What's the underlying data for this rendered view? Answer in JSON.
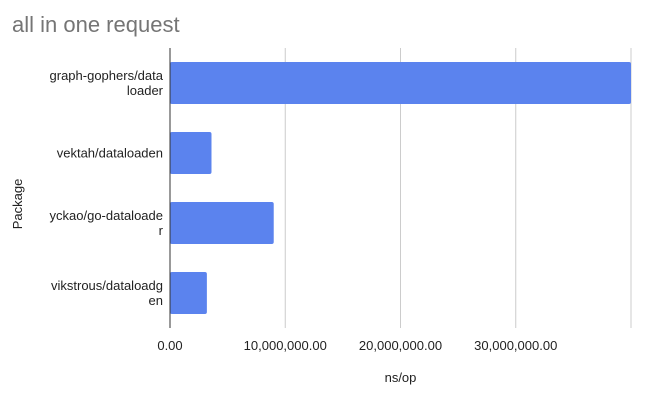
{
  "chart_data": {
    "type": "bar",
    "orientation": "horizontal",
    "title": "all in one request",
    "xlabel": "ns/op",
    "ylabel": "Package",
    "categories": [
      [
        "graph-gophers/data",
        "loader"
      ],
      [
        "vektah/dataloaden"
      ],
      [
        "yckao/go-dataloade",
        "r"
      ],
      [
        "vikstrous/dataloadg",
        "en"
      ]
    ],
    "values": [
      40000000,
      3600000,
      9000000,
      3200000
    ],
    "xlim": [
      0,
      40000000
    ],
    "xticks": [
      0,
      10000000,
      20000000,
      30000000
    ],
    "xtick_labels": [
      "0.00",
      "10,000,000.00",
      "20,000,000.00",
      "30,000,000.00"
    ],
    "grid": true,
    "colors": {
      "bar": "#5b83ee",
      "grid": "#cccccc",
      "axis": "#333333",
      "text": "#222222",
      "title": "#757575"
    }
  }
}
